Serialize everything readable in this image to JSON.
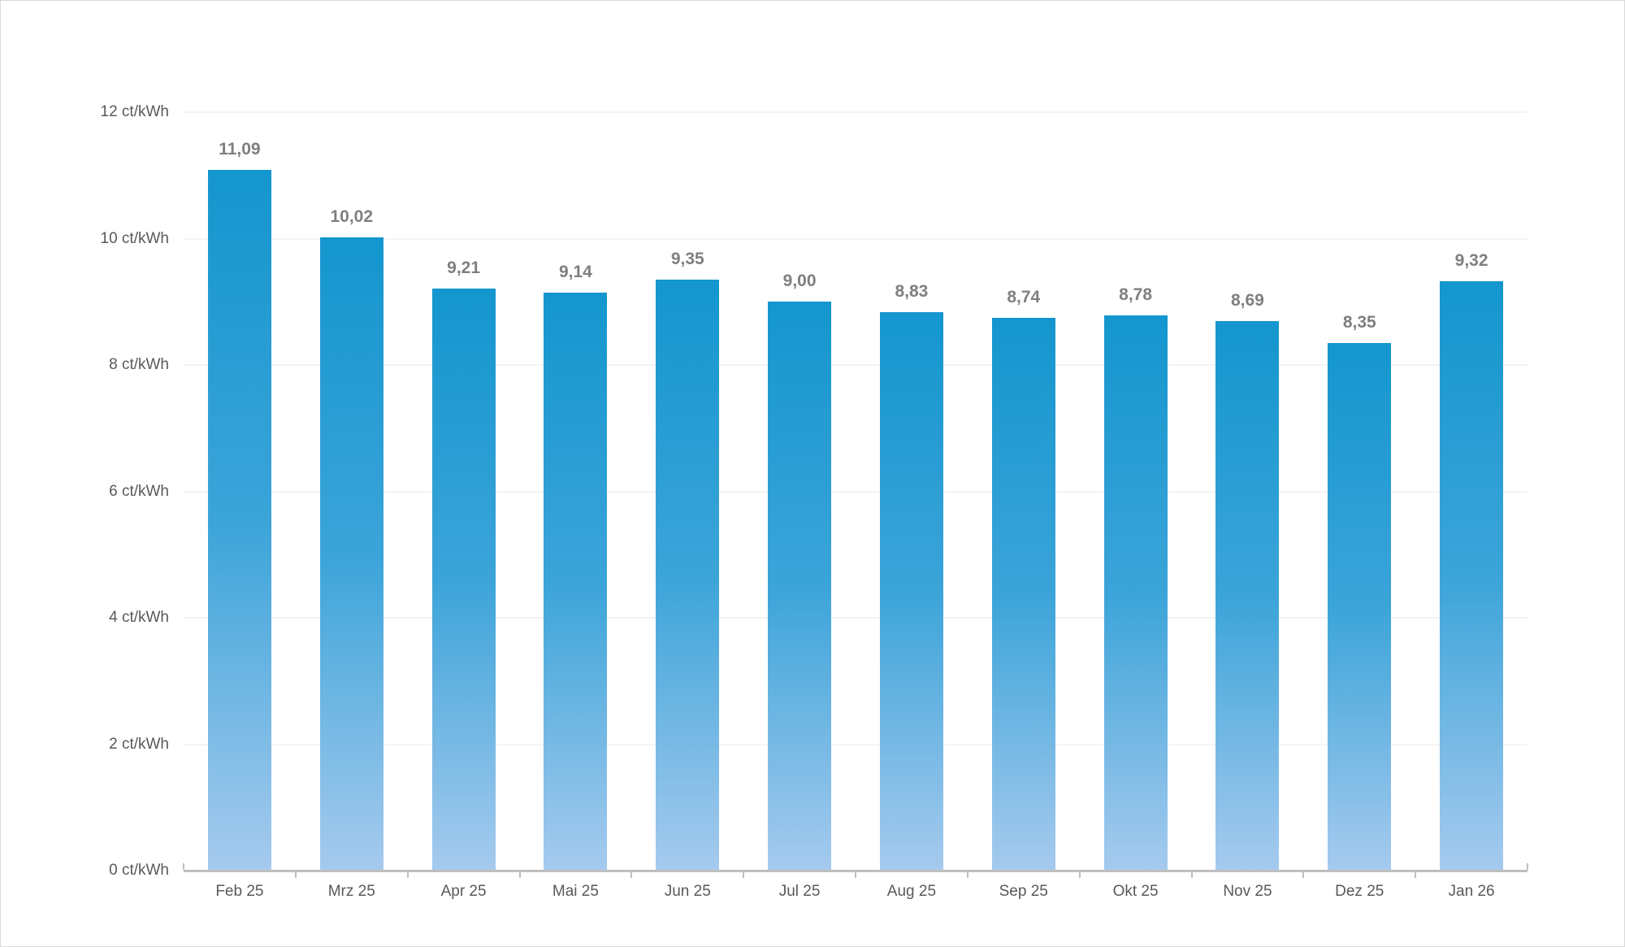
{
  "page": {
    "background": "#ffffff",
    "border_color": "#d9d9d9"
  },
  "chart_data": {
    "type": "bar",
    "title": "",
    "xlabel": "",
    "ylabel": "",
    "unit": "ct/kWh",
    "categories": [
      "Feb 25",
      "Mrz 25",
      "Apr 25",
      "Mai 25",
      "Jun 25",
      "Jul 25",
      "Aug 25",
      "Sep 25",
      "Okt 25",
      "Nov 25",
      "Dez 25",
      "Jan 26"
    ],
    "values": [
      11.09,
      10.02,
      9.21,
      9.14,
      9.35,
      9.0,
      8.83,
      8.74,
      8.78,
      8.69,
      8.35,
      9.32
    ],
    "value_labels": [
      "11,09",
      "10,02",
      "9,21",
      "9,14",
      "9,35",
      "9,00",
      "8,83",
      "8,74",
      "8,78",
      "8,69",
      "8,35",
      "9,32"
    ],
    "y_axis": {
      "min": 0,
      "max": 12,
      "step": 2,
      "tick_labels": [
        "0 ct/kWh",
        "2 ct/kWh",
        "4 ct/kWh",
        "6 ct/kWh",
        "8 ct/kWh",
        "10 ct/kWh",
        "12 ct/kWh"
      ]
    },
    "grid": true,
    "legend_position": "none",
    "colors": {
      "bar_gradient_top": "#1496ce",
      "bar_gradient_mid": "#3ba4d9",
      "bar_gradient_bottom": "#a6caee",
      "value_label": "#7f7f7f",
      "axis_label": "#595959",
      "axis_line": "#bfbfbf",
      "gridline": "#f3f3f3"
    }
  }
}
